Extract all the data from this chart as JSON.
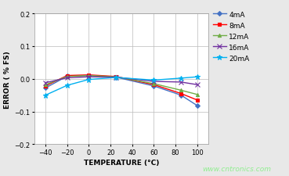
{
  "xlabel": "TEMPERATURE (°C)",
  "ylabel": "ERROR ( % FS)",
  "xlim": [
    -50,
    110
  ],
  "ylim": [
    -0.2,
    0.2
  ],
  "xticks": [
    -40,
    -20,
    0,
    20,
    40,
    60,
    80,
    100
  ],
  "yticks": [
    -0.2,
    -0.1,
    0.0,
    0.1,
    0.2
  ],
  "watermark": "www.cntronics.com",
  "series": [
    {
      "label": "4mA",
      "color": "#4472C4",
      "marker": "D",
      "markersize": 3,
      "x": [
        -40,
        -20,
        0,
        25,
        60,
        85,
        100
      ],
      "y": [
        -0.028,
        0.008,
        0.01,
        0.005,
        -0.022,
        -0.05,
        -0.082
      ]
    },
    {
      "label": "8mA",
      "color": "#FF0000",
      "marker": "s",
      "markersize": 3,
      "x": [
        -40,
        -20,
        0,
        25,
        60,
        85,
        100
      ],
      "y": [
        -0.022,
        0.01,
        0.012,
        0.007,
        -0.018,
        -0.045,
        -0.065
      ]
    },
    {
      "label": "12mA",
      "color": "#70AD47",
      "marker": "^",
      "markersize": 3,
      "x": [
        -40,
        -20,
        0,
        25,
        60,
        85,
        100
      ],
      "y": [
        -0.018,
        0.007,
        0.01,
        0.006,
        -0.015,
        -0.035,
        -0.048
      ]
    },
    {
      "label": "16mA",
      "color": "#7030A0",
      "marker": "x",
      "markersize": 4,
      "x": [
        -40,
        -20,
        0,
        25,
        60,
        85,
        100
      ],
      "y": [
        -0.012,
        0.003,
        0.006,
        0.005,
        -0.008,
        -0.01,
        -0.018
      ]
    },
    {
      "label": "20mA",
      "color": "#00B0F0",
      "marker": "*",
      "markersize": 5,
      "x": [
        -40,
        -20,
        0,
        25,
        60,
        85,
        100
      ],
      "y": [
        -0.05,
        -0.02,
        -0.002,
        0.004,
        -0.004,
        0.002,
        0.006
      ]
    }
  ],
  "fig_background": "#E8E8E8",
  "plot_bg_color": "#FFFFFF",
  "grid_color": "#BBBBBB",
  "label_fontsize": 6.5,
  "tick_fontsize": 6,
  "legend_fontsize": 6.5,
  "linewidth": 1.0
}
